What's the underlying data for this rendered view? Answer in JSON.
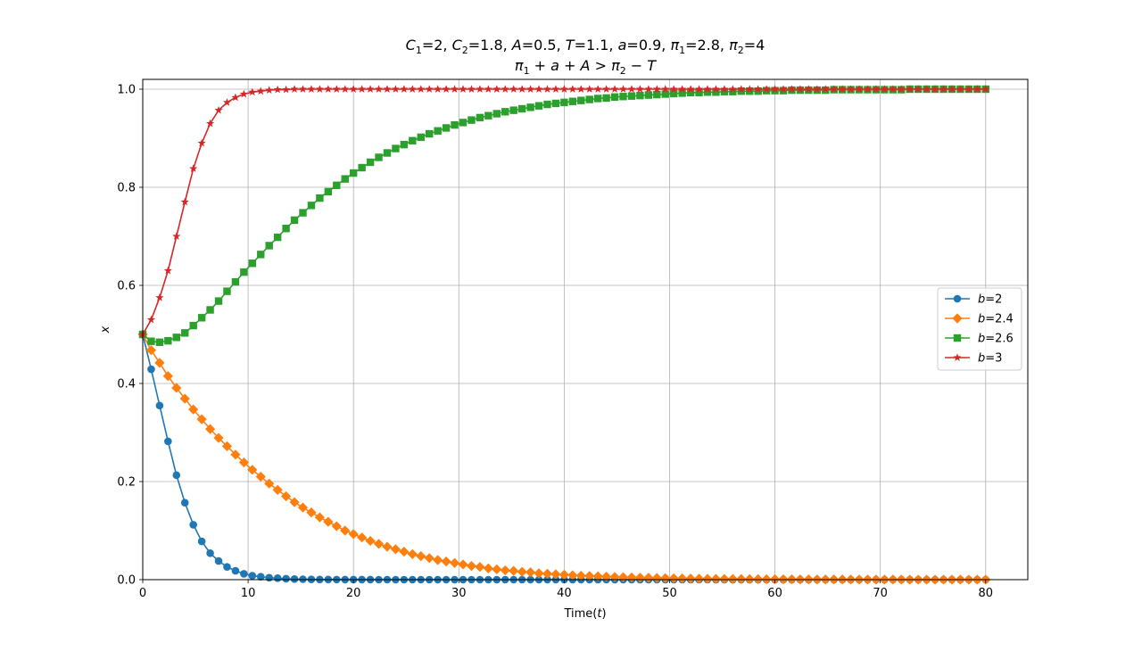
{
  "chart_data": {
    "type": "line",
    "title_line1": "C1=2, C2=1.8, A=0.5, T=1.1, a=0.9, π1=2.8, π2=4",
    "title_line2": "π1 + a + A > π2 − T",
    "xlabel": "Time(t)",
    "ylabel": "x",
    "xlim": [
      0,
      84
    ],
    "ylim": [
      0,
      1.02
    ],
    "xticks": [
      0,
      10,
      20,
      30,
      40,
      50,
      60,
      70,
      80
    ],
    "yticks": [
      0.0,
      0.2,
      0.4,
      0.6,
      0.8,
      1.0
    ],
    "xtick_labels": [
      "0",
      "10",
      "20",
      "30",
      "40",
      "50",
      "60",
      "70",
      "80"
    ],
    "ytick_labels": [
      "0.0",
      "0.2",
      "0.4",
      "0.6",
      "0.8",
      "1.0"
    ],
    "grid": true,
    "legend_position": "center-right",
    "x": [
      0,
      0.8,
      1.6,
      2.4,
      3.2,
      4,
      4.8,
      5.6,
      6.4,
      7.2,
      8,
      8.8,
      9.6,
      10.4,
      11.2,
      12,
      12.8,
      13.6,
      14.4,
      15.2,
      16,
      16.8,
      17.6,
      18.4,
      19.2,
      20,
      20.8,
      21.6,
      22.4,
      23.2,
      24,
      24.8,
      25.6,
      26.4,
      27.2,
      28,
      28.8,
      29.6,
      30.4,
      31.2,
      32,
      32.8,
      33.6,
      34.4,
      35.2,
      36,
      36.8,
      37.6,
      38.4,
      39.2,
      40,
      40.8,
      41.6,
      42.4,
      43.2,
      44,
      44.8,
      45.6,
      46.4,
      47.2,
      48,
      48.8,
      49.6,
      50.4,
      51.2,
      52,
      52.8,
      53.6,
      54.4,
      55.2,
      56,
      56.8,
      57.6,
      58.4,
      59.2,
      60,
      60.8,
      61.6,
      62.4,
      63.2,
      64,
      64.8,
      65.6,
      66.4,
      67.2,
      68,
      68.8,
      69.6,
      70.4,
      71.2,
      72,
      72.8,
      73.6,
      74.4,
      75.2,
      76,
      76.8,
      77.6,
      78.4,
      79.2,
      80
    ],
    "series": [
      {
        "name": "b=2",
        "color": "#1f77b4",
        "marker": "circle",
        "values": [
          0.5,
          0.429,
          0.355,
          0.282,
          0.213,
          0.157,
          0.112,
          0.078,
          0.054,
          0.038,
          0.026,
          0.018,
          0.012,
          0.008,
          0.006,
          0.004,
          0.003,
          0.002,
          0.0013,
          0.0009,
          0.0006,
          0.0004,
          0.0003,
          0.0002,
          0.0001,
          0.0001,
          0.0001,
          0.0001,
          0.0,
          0.0,
          0.0,
          0.0,
          0.0,
          0.0,
          0.0,
          0.0,
          0.0,
          0.0,
          0.0,
          0.0,
          0.0,
          0.0,
          0.0,
          0.0,
          0.0,
          0.0,
          0.0,
          0.0,
          0.0,
          0.0,
          0.0,
          0.0,
          0.0,
          0.0,
          0.0,
          0.0,
          0.0,
          0.0,
          0.0,
          0.0,
          0.0,
          0.0,
          0.0,
          0.0,
          0.0,
          0.0,
          0.0,
          0.0,
          0.0,
          0.0,
          0.0,
          0.0,
          0.0,
          0.0,
          0.0,
          0.0,
          0.0,
          0.0,
          0.0,
          0.0,
          0.0,
          0.0,
          0.0,
          0.0,
          0.0,
          0.0,
          0.0,
          0.0,
          0.0,
          0.0,
          0.0,
          0.0,
          0.0,
          0.0,
          0.0,
          0.0,
          0.0,
          0.0,
          0.0,
          0.0,
          0.0
        ]
      },
      {
        "name": "b=2.4",
        "color": "#ff7f0e",
        "marker": "diamond",
        "values": [
          0.5,
          0.468,
          0.442,
          0.415,
          0.391,
          0.369,
          0.347,
          0.327,
          0.307,
          0.289,
          0.272,
          0.255,
          0.239,
          0.224,
          0.21,
          0.196,
          0.183,
          0.17,
          0.158,
          0.147,
          0.137,
          0.127,
          0.118,
          0.109,
          0.1,
          0.093,
          0.086,
          0.079,
          0.073,
          0.067,
          0.062,
          0.057,
          0.052,
          0.048,
          0.044,
          0.04,
          0.037,
          0.034,
          0.031,
          0.028,
          0.026,
          0.023,
          0.021,
          0.019,
          0.018,
          0.016,
          0.015,
          0.013,
          0.012,
          0.011,
          0.01,
          0.009,
          0.008,
          0.0075,
          0.0068,
          0.0062,
          0.0056,
          0.005,
          0.0046,
          0.0042,
          0.0038,
          0.0034,
          0.0031,
          0.0028,
          0.0025,
          0.0023,
          0.0021,
          0.0019,
          0.0017,
          0.0015,
          0.0014,
          0.0013,
          0.0012,
          0.0011,
          0.001,
          0.0009,
          0.0008,
          0.0007,
          0.0006,
          0.0006,
          0.0005,
          0.0005,
          0.0004,
          0.0004,
          0.0003,
          0.0003,
          0.0003,
          0.0002,
          0.0002,
          0.0002,
          0.0002,
          0.0001,
          0.0001,
          0.0001,
          0.0001,
          0.0001,
          0.0001,
          0.0001,
          0.0001,
          0.0001,
          0.0001
        ]
      },
      {
        "name": "b=2.6",
        "color": "#2ca02c",
        "marker": "square",
        "values": [
          0.5,
          0.486,
          0.484,
          0.487,
          0.494,
          0.503,
          0.518,
          0.534,
          0.55,
          0.568,
          0.588,
          0.607,
          0.627,
          0.645,
          0.663,
          0.681,
          0.698,
          0.716,
          0.733,
          0.748,
          0.763,
          0.778,
          0.791,
          0.804,
          0.817,
          0.829,
          0.84,
          0.851,
          0.861,
          0.87,
          0.879,
          0.887,
          0.895,
          0.902,
          0.909,
          0.915,
          0.921,
          0.927,
          0.932,
          0.937,
          0.942,
          0.946,
          0.95,
          0.954,
          0.957,
          0.96,
          0.963,
          0.966,
          0.969,
          0.971,
          0.973,
          0.975,
          0.977,
          0.979,
          0.981,
          0.982,
          0.984,
          0.985,
          0.986,
          0.987,
          0.988,
          0.989,
          0.99,
          0.991,
          0.992,
          0.993,
          0.993,
          0.994,
          0.994,
          0.995,
          0.995,
          0.996,
          0.996,
          0.996,
          0.997,
          0.997,
          0.997,
          0.998,
          0.998,
          0.998,
          0.998,
          0.998,
          0.999,
          0.999,
          0.999,
          0.999,
          0.999,
          0.999,
          0.999,
          0.999,
          0.999,
          1.0,
          1.0,
          1.0,
          1.0,
          1.0,
          1.0,
          1.0,
          1.0,
          1.0,
          1.0
        ]
      },
      {
        "name": "b=3",
        "color": "#d62728",
        "marker": "star",
        "values": [
          0.5,
          0.53,
          0.575,
          0.63,
          0.7,
          0.77,
          0.838,
          0.89,
          0.93,
          0.957,
          0.973,
          0.983,
          0.99,
          0.994,
          0.996,
          0.998,
          0.999,
          0.999,
          1.0,
          1.0,
          1.0,
          1.0,
          1.0,
          1.0,
          1.0,
          1.0,
          1.0,
          1.0,
          1.0,
          1.0,
          1.0,
          1.0,
          1.0,
          1.0,
          1.0,
          1.0,
          1.0,
          1.0,
          1.0,
          1.0,
          1.0,
          1.0,
          1.0,
          1.0,
          1.0,
          1.0,
          1.0,
          1.0,
          1.0,
          1.0,
          1.0,
          1.0,
          1.0,
          1.0,
          1.0,
          1.0,
          1.0,
          1.0,
          1.0,
          1.0,
          1.0,
          1.0,
          1.0,
          1.0,
          1.0,
          1.0,
          1.0,
          1.0,
          1.0,
          1.0,
          1.0,
          1.0,
          1.0,
          1.0,
          1.0,
          1.0,
          1.0,
          1.0,
          1.0,
          1.0,
          1.0,
          1.0,
          1.0,
          1.0,
          1.0,
          1.0,
          1.0,
          1.0,
          1.0,
          1.0,
          1.0,
          1.0,
          1.0,
          1.0,
          1.0,
          1.0,
          1.0,
          1.0,
          1.0,
          1.0,
          1.0
        ]
      }
    ]
  }
}
